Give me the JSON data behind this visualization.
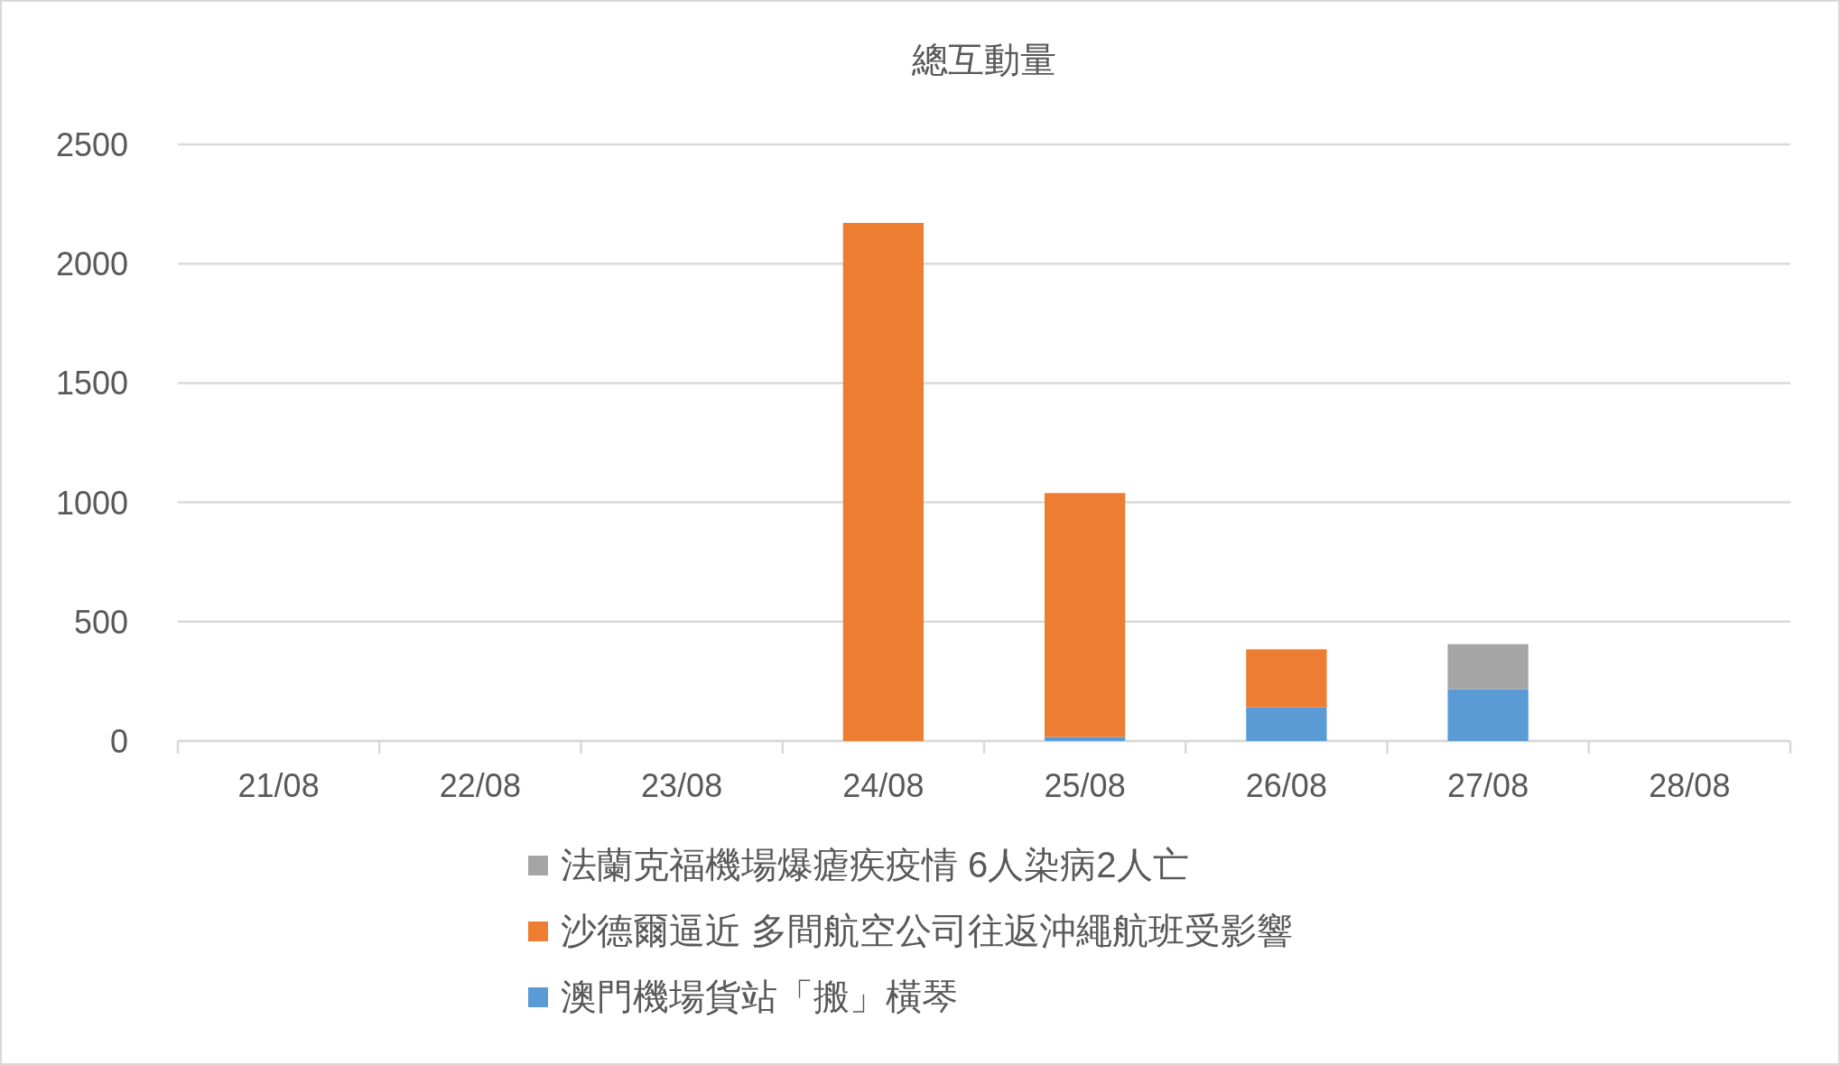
{
  "chart_data": {
    "type": "bar",
    "title": "總互動量",
    "stacked": true,
    "categories": [
      "21/08",
      "22/08",
      "23/08",
      "24/08",
      "25/08",
      "26/08",
      "27/08",
      "28/08"
    ],
    "series": [
      {
        "name": "澳門機場貨站「搬」橫琴",
        "color": "#5b9bd5",
        "values": [
          0,
          0,
          0,
          0,
          17,
          141,
          217,
          0
        ]
      },
      {
        "name": "沙德爾逼近 多間航空公司往返沖繩航班受影響",
        "color": "#ed7d31",
        "values": [
          0,
          0,
          0,
          2171,
          1022,
          243,
          0,
          0
        ]
      },
      {
        "name": "法蘭克福機場爆瘧疾疫情 6人染病2人亡",
        "color": "#a5a5a5",
        "values": [
          0,
          0,
          0,
          0,
          0,
          0,
          189,
          0
        ]
      }
    ],
    "ylim": [
      0,
      2500
    ],
    "yticks": [
      0,
      500,
      1000,
      1500,
      2000,
      2500
    ],
    "grid": "y",
    "legend": "bottom"
  }
}
